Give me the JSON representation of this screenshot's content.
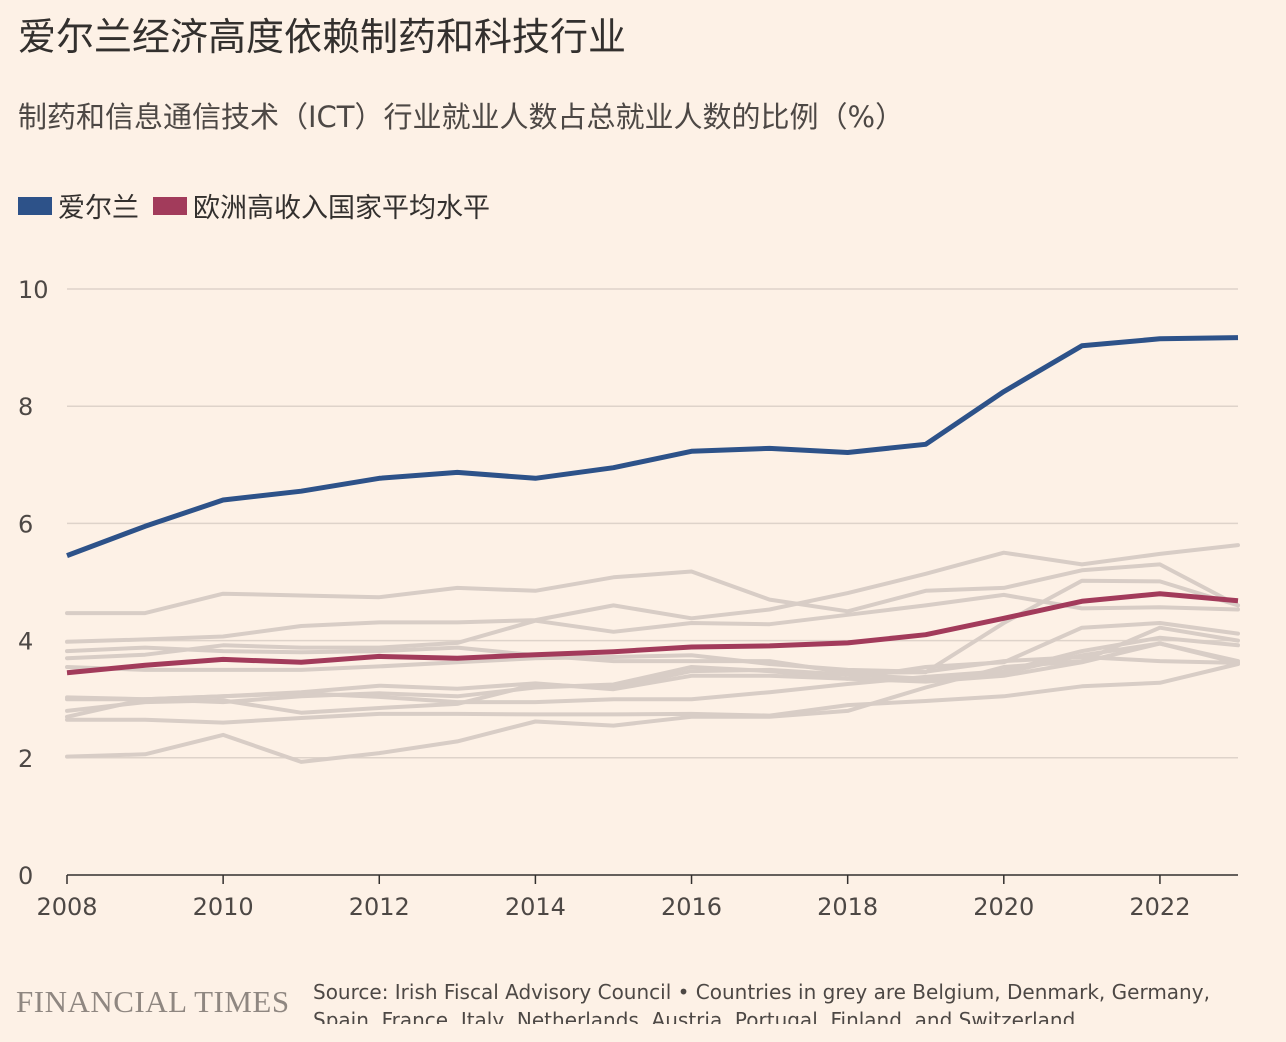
{
  "header": {
    "title": "爱尔兰经济高度依赖制药和科技行业",
    "subtitle": "制药和信息通信技术（ICT）行业就业人数占总就业人数的比例（%）"
  },
  "footer": {
    "logo_text": "FINANCIAL TIMES",
    "source": "Source: Irish Fiscal Advisory Council • Countries in grey are Belgium, Denmark, Germany, Spain, France, Italy, Netherlands, Austria, Portugal, Finland, and Switzerland"
  },
  "colors": {
    "background": "#fdf1e6",
    "ireland": "#2d5289",
    "average": "#a23b5b",
    "grey": "#d8cdc6",
    "grid": "#ded3ca"
  },
  "chart_data": {
    "type": "line",
    "title": "爱尔兰经济高度依赖制药和科技行业",
    "subtitle": "制药和信息通信技术（ICT）行业就业人数占总就业人数的比例（%）",
    "xlabel": "",
    "ylabel": "",
    "x": [
      2008,
      2009,
      2010,
      2011,
      2012,
      2013,
      2014,
      2015,
      2016,
      2017,
      2018,
      2019,
      2020,
      2021,
      2022,
      2023
    ],
    "xticks": [
      "2008",
      "2010",
      "2012",
      "2014",
      "2016",
      "2018",
      "2020",
      "2022"
    ],
    "yticks": [
      "0",
      "2",
      "4",
      "6",
      "8",
      "10"
    ],
    "ylim": [
      0,
      10
    ],
    "grid": true,
    "legend_position": "top-left",
    "series": [
      {
        "name": "爱尔兰",
        "color": "#2d5289",
        "values": [
          5.45,
          5.95,
          6.4,
          6.55,
          6.77,
          6.87,
          6.77,
          6.95,
          7.23,
          7.28,
          7.21,
          7.35,
          8.25,
          9.03,
          9.15,
          9.17
        ]
      },
      {
        "name": "欧洲高收入国家平均水平",
        "color": "#a23b5b",
        "values": [
          3.45,
          3.58,
          3.68,
          3.63,
          3.73,
          3.7,
          3.76,
          3.81,
          3.89,
          3.91,
          3.96,
          4.1,
          4.38,
          4.67,
          4.8,
          4.68
        ]
      }
    ],
    "grey_series": [
      {
        "values": [
          4.47,
          4.47,
          4.8,
          4.77,
          4.74,
          4.9,
          4.85,
          5.08,
          5.18,
          4.7,
          4.5,
          4.85,
          4.9,
          5.2,
          5.3,
          4.6
        ]
      },
      {
        "values": [
          3.98,
          4.02,
          4.07,
          4.25,
          4.31,
          4.31,
          4.35,
          4.6,
          4.38,
          4.53,
          4.81,
          5.14,
          5.5,
          5.3,
          5.48,
          5.63
        ]
      },
      {
        "values": [
          3.7,
          3.76,
          3.92,
          3.88,
          3.88,
          3.96,
          4.34,
          4.15,
          4.3,
          4.28,
          4.44,
          4.6,
          4.78,
          4.55,
          4.57,
          4.53
        ]
      },
      {
        "values": [
          3.82,
          3.88,
          3.82,
          3.8,
          3.82,
          3.88,
          3.75,
          3.65,
          3.65,
          3.65,
          3.45,
          3.46,
          4.3,
          5.02,
          5.01,
          4.6
        ]
      },
      {
        "values": [
          3.55,
          3.5,
          3.5,
          3.5,
          3.56,
          3.63,
          3.7,
          3.72,
          3.75,
          3.6,
          3.5,
          3.47,
          3.65,
          3.72,
          3.65,
          3.62
        ]
      },
      {
        "values": [
          3.03,
          3.0,
          3.05,
          3.12,
          3.23,
          3.18,
          3.27,
          3.17,
          3.4,
          3.4,
          3.35,
          3.55,
          3.63,
          4.22,
          4.3,
          4.12
        ]
      },
      {
        "values": [
          3.0,
          3.0,
          3.05,
          3.1,
          3.04,
          2.95,
          2.95,
          3.0,
          3.0,
          3.12,
          3.26,
          3.38,
          3.48,
          3.82,
          4.05,
          3.92
        ]
      },
      {
        "values": [
          2.8,
          2.95,
          2.98,
          2.77,
          2.85,
          2.92,
          3.25,
          3.2,
          3.48,
          3.5,
          3.42,
          3.35,
          3.45,
          3.75,
          3.95,
          3.65
        ]
      },
      {
        "values": [
          2.65,
          2.65,
          2.6,
          2.68,
          2.75,
          2.75,
          2.74,
          2.74,
          2.75,
          2.72,
          2.9,
          2.97,
          3.05,
          3.22,
          3.28,
          3.6
        ]
      },
      {
        "values": [
          2.7,
          3.0,
          2.95,
          3.05,
          3.1,
          3.05,
          3.2,
          3.25,
          3.55,
          3.48,
          3.35,
          3.3,
          3.4,
          3.63,
          3.95,
          3.62
        ]
      },
      {
        "values": [
          2.02,
          2.06,
          2.39,
          1.93,
          2.08,
          2.28,
          2.62,
          2.55,
          2.7,
          2.7,
          2.8,
          3.2,
          3.55,
          3.65,
          4.22,
          4.0
        ]
      }
    ]
  }
}
